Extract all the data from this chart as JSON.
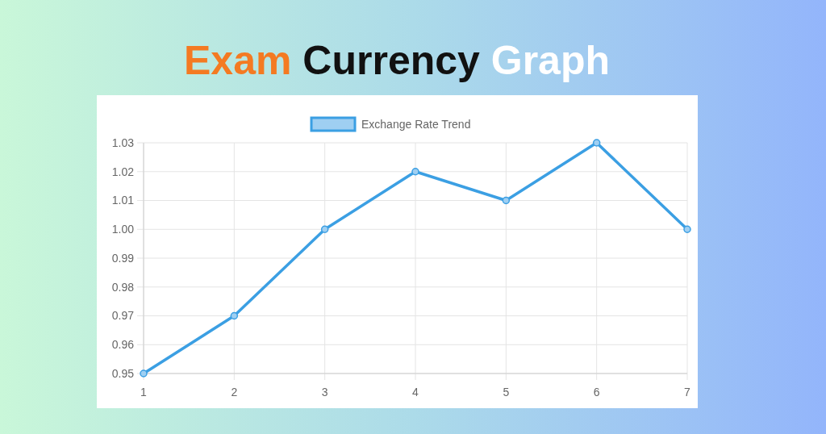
{
  "chart_data": {
    "type": "line",
    "title": "Exam Currency Graph",
    "categories": [
      "1",
      "2",
      "3",
      "4",
      "5",
      "6",
      "7"
    ],
    "series": [
      {
        "name": "Exchange Rate Trend",
        "color": "#3b9fe3",
        "values": [
          0.95,
          0.97,
          1.0,
          1.02,
          1.01,
          1.03,
          1.0
        ]
      }
    ],
    "ylim": [
      0.95,
      1.03
    ],
    "yticks": [
      {
        "value": 0.95,
        "label": "0.95"
      },
      {
        "value": 0.96,
        "label": "0.96"
      },
      {
        "value": 0.97,
        "label": "0.97"
      },
      {
        "value": 0.98,
        "label": "0.98"
      },
      {
        "value": 0.99,
        "label": "0.99"
      },
      {
        "value": 1.0,
        "label": "1.00"
      },
      {
        "value": 1.01,
        "label": "1.01"
      },
      {
        "value": 1.02,
        "label": "1.02"
      },
      {
        "value": 1.03,
        "label": "1.03"
      }
    ],
    "grid": true,
    "legend": "top",
    "marker": "circle",
    "line_style": "solid"
  }
}
